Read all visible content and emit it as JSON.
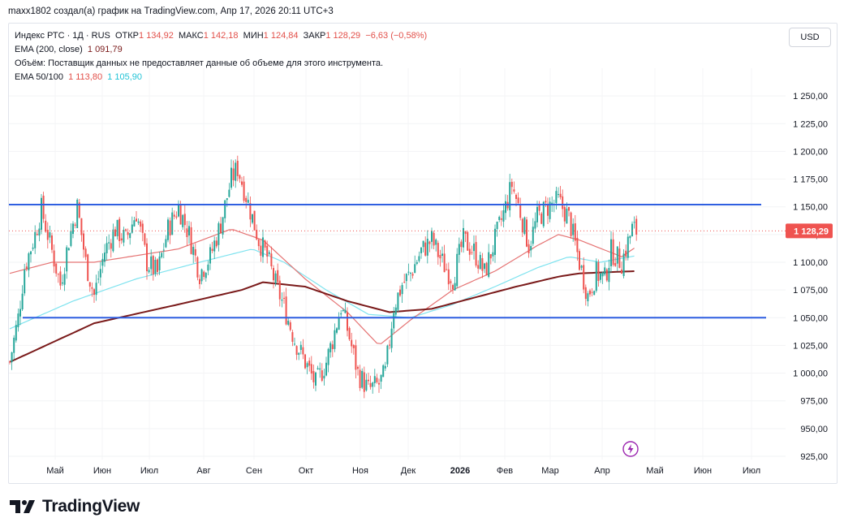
{
  "caption": "maxx1802 создал(а) график на TradingView.com, Апр 17, 2026 20:11 UTC+3",
  "legend": {
    "symbol": "Индекс РТС · 1Д · RUS",
    "open_label": "ОТКР",
    "open": "1 134,92",
    "high_label": "МАКС",
    "high": "1 142,18",
    "low_label": "МИН",
    "low": "1 124,84",
    "close_label": "ЗАКР",
    "close": "1 128,29",
    "change": "−6,63 (−0,58%)",
    "ema200_label": "EMA (200, close)",
    "ema200": "1 091,79",
    "volume_note": "Объём: Поставщик данных не предоставляет данные об объеме для этого инструмента.",
    "ema50100_label": "EMA 50/100",
    "ema50": "1 113,80",
    "ema100": "1 105,90"
  },
  "currency_button": "USD",
  "price_badge": "1 128,29",
  "brand": "TradingView",
  "colors": {
    "up": "#26a69a",
    "down": "#ef5350",
    "level": "#2f5fe0",
    "ema200": "#7a1a1a",
    "ema50": "#e57373",
    "ema100": "#7fe3ef",
    "badge": "#ef5350"
  },
  "chart_data": {
    "type": "candlestick",
    "ylim": [
      925,
      1275
    ],
    "y_ticks": [
      "925,00",
      "950,00",
      "975,00",
      "1 000,00",
      "1 025,00",
      "1 050,00",
      "1 075,00",
      "1 100,00",
      "1 125,00",
      "1 150,00",
      "1 175,00",
      "1 200,00",
      "1 225,00",
      "1 250,00"
    ],
    "x_labels": [
      "Май",
      "Июн",
      "Июл",
      "Авг",
      "Сен",
      "Окт",
      "Ноя",
      "Дек",
      "2026",
      "Фев",
      "Мар",
      "Апр",
      "Май",
      "Июн",
      "Июл"
    ],
    "horizontal_levels": [
      1152,
      1050
    ],
    "last_price": 1128.29,
    "close_path": [
      [
        0,
        1010
      ],
      [
        4,
        1050
      ],
      [
        7,
        1095
      ],
      [
        12,
        1125
      ],
      [
        15,
        1148
      ],
      [
        20,
        1110
      ],
      [
        24,
        1080
      ],
      [
        28,
        1120
      ],
      [
        32,
        1150
      ],
      [
        36,
        1100
      ],
      [
        40,
        1070
      ],
      [
        45,
        1110
      ],
      [
        50,
        1130
      ],
      [
        55,
        1120
      ],
      [
        60,
        1145
      ],
      [
        65,
        1100
      ],
      [
        70,
        1090
      ],
      [
        75,
        1130
      ],
      [
        80,
        1150
      ],
      [
        85,
        1125
      ],
      [
        90,
        1090
      ],
      [
        95,
        1105
      ],
      [
        100,
        1135
      ],
      [
        105,
        1175
      ],
      [
        108,
        1185
      ],
      [
        112,
        1160
      ],
      [
        118,
        1120
      ],
      [
        122,
        1105
      ],
      [
        126,
        1080
      ],
      [
        130,
        1060
      ],
      [
        135,
        1030
      ],
      [
        140,
        1010
      ],
      [
        145,
        990
      ],
      [
        150,
        1010
      ],
      [
        153,
        1030
      ],
      [
        157,
        1060
      ],
      [
        160,
        1040
      ],
      [
        165,
        1000
      ],
      [
        170,
        985
      ],
      [
        175,
        990
      ],
      [
        178,
        1000
      ],
      [
        182,
        1060
      ],
      [
        186,
        1080
      ],
      [
        190,
        1090
      ],
      [
        195,
        1110
      ],
      [
        200,
        1120
      ],
      [
        205,
        1100
      ],
      [
        210,
        1085
      ],
      [
        215,
        1120
      ],
      [
        220,
        1110
      ],
      [
        225,
        1090
      ],
      [
        230,
        1120
      ],
      [
        235,
        1150
      ],
      [
        238,
        1170
      ],
      [
        242,
        1145
      ],
      [
        246,
        1115
      ],
      [
        250,
        1140
      ],
      [
        255,
        1150
      ],
      [
        260,
        1155
      ],
      [
        265,
        1140
      ],
      [
        270,
        1100
      ],
      [
        274,
        1070
      ],
      [
        278,
        1090
      ],
      [
        282,
        1085
      ],
      [
        285,
        1110
      ],
      [
        290,
        1100
      ],
      [
        295,
        1130
      ],
      [
        297,
        1128
      ]
    ],
    "ema200_path": [
      [
        0,
        1010
      ],
      [
        40,
        1045
      ],
      [
        80,
        1062
      ],
      [
        110,
        1075
      ],
      [
        120,
        1082
      ],
      [
        140,
        1078
      ],
      [
        160,
        1065
      ],
      [
        180,
        1055
      ],
      [
        200,
        1058
      ],
      [
        220,
        1068
      ],
      [
        240,
        1078
      ],
      [
        260,
        1087
      ],
      [
        270,
        1090
      ],
      [
        297,
        1092
      ]
    ],
    "ema50_path": [
      [
        0,
        1090
      ],
      [
        20,
        1100
      ],
      [
        40,
        1100
      ],
      [
        80,
        1112
      ],
      [
        105,
        1130
      ],
      [
        120,
        1120
      ],
      [
        140,
        1085
      ],
      [
        160,
        1055
      ],
      [
        175,
        1025
      ],
      [
        190,
        1048
      ],
      [
        210,
        1075
      ],
      [
        230,
        1092
      ],
      [
        250,
        1115
      ],
      [
        260,
        1125
      ],
      [
        270,
        1120
      ],
      [
        290,
        1105
      ],
      [
        297,
        1114
      ]
    ],
    "ema100_path": [
      [
        0,
        1040
      ],
      [
        30,
        1065
      ],
      [
        60,
        1085
      ],
      [
        90,
        1100
      ],
      [
        115,
        1112
      ],
      [
        130,
        1100
      ],
      [
        150,
        1075
      ],
      [
        170,
        1053
      ],
      [
        190,
        1050
      ],
      [
        210,
        1062
      ],
      [
        230,
        1078
      ],
      [
        250,
        1095
      ],
      [
        265,
        1105
      ],
      [
        280,
        1100
      ],
      [
        297,
        1106
      ]
    ]
  }
}
